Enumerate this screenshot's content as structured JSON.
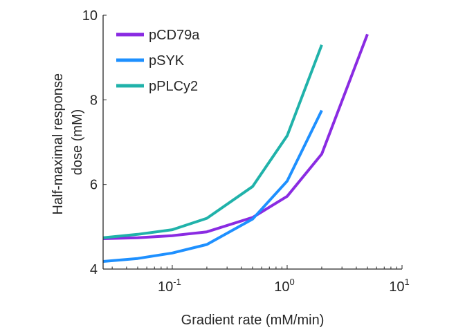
{
  "chart_data": {
    "type": "line",
    "xscale": "log",
    "xlabel": "Gradient rate (mM/min)",
    "ylabel": [
      "Half-maximal response",
      "dose (mM)"
    ],
    "xlim": [
      0.025,
      10
    ],
    "ylim": [
      4,
      10
    ],
    "x_ticks": [
      {
        "base": "10",
        "exp": "-1",
        "value": 0.1
      },
      {
        "base": "10",
        "exp": "0",
        "value": 1
      },
      {
        "base": "10",
        "exp": "1",
        "value": 10
      }
    ],
    "y_ticks": [
      {
        "label": "4",
        "value": 4
      },
      {
        "label": "6",
        "value": 6
      },
      {
        "label": "8",
        "value": 8
      },
      {
        "label": "10",
        "value": 10
      }
    ],
    "legend_position": "top-left",
    "grid": false,
    "series": [
      {
        "name": "pCD79a",
        "color": "#8a2be2",
        "x": [
          0.025,
          0.05,
          0.1,
          0.2,
          0.5,
          1,
          2,
          5
        ],
        "y": [
          4.72,
          4.74,
          4.79,
          4.88,
          5.22,
          5.72,
          6.72,
          9.55
        ]
      },
      {
        "name": "pSYK",
        "color": "#1e90ff",
        "x": [
          0.025,
          0.05,
          0.1,
          0.2,
          0.5,
          1,
          2
        ],
        "y": [
          4.18,
          4.25,
          4.38,
          4.58,
          5.18,
          6.08,
          7.75
        ]
      },
      {
        "name": "pPLCy2",
        "color": "#20b2aa",
        "x": [
          0.025,
          0.05,
          0.1,
          0.2,
          0.5,
          1,
          2
        ],
        "y": [
          4.74,
          4.82,
          4.93,
          5.2,
          5.95,
          7.15,
          9.3
        ]
      }
    ]
  }
}
